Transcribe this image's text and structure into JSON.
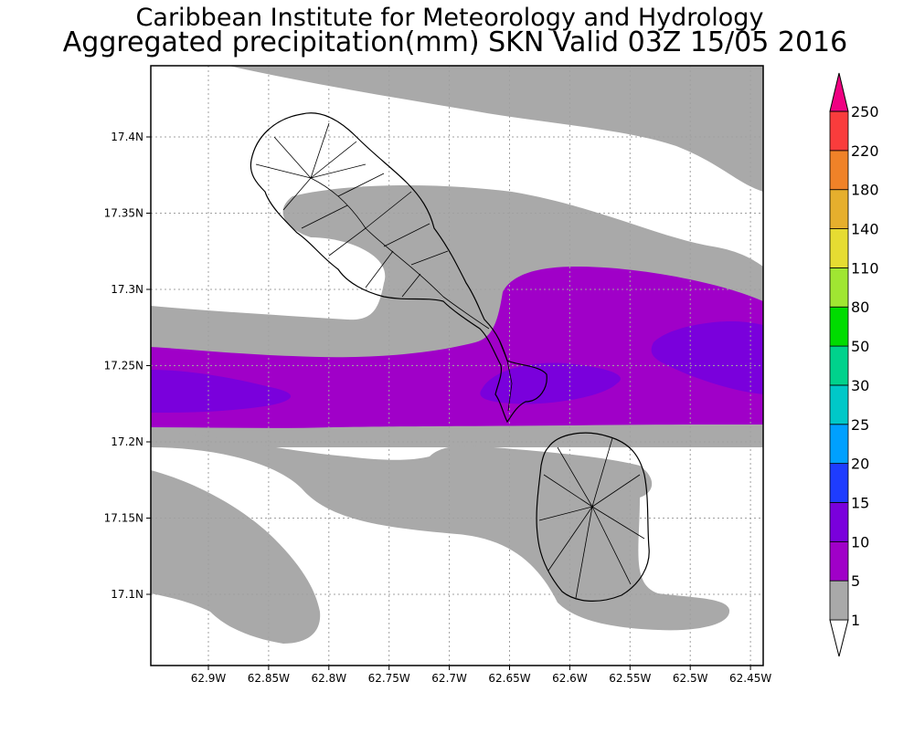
{
  "title": "Caribbean Institute for Meteorology and Hydrology",
  "subtitle": "Aggregated precipitation(mm) SKN Valid 03Z 15/05 2016",
  "axes": {
    "lon_ticks": [
      "62.9W",
      "62.85W",
      "62.8W",
      "62.75W",
      "62.7W",
      "62.65W",
      "62.6W",
      "62.55W",
      "62.5W",
      "62.45W"
    ],
    "lat_ticks": [
      "17.4N",
      "17.35N",
      "17.3N",
      "17.25N",
      "17.2N",
      "17.15N",
      "17.1N"
    ]
  },
  "colorbar": {
    "levels": [
      "1",
      "5",
      "10",
      "15",
      "20",
      "25",
      "30",
      "50",
      "80",
      "110",
      "140",
      "180",
      "220",
      "250"
    ],
    "colors": [
      "#a9a9a9",
      "#a000c8",
      "#7a00dc",
      "#1e3cff",
      "#00a0ff",
      "#00c8c8",
      "#00d28c",
      "#00dc00",
      "#a0e632",
      "#e6dc32",
      "#e6af2d",
      "#f08228",
      "#fa3c3c",
      "#f00082"
    ],
    "below_color": "#ffffff"
  },
  "colors": {
    "light_rain": "#a9a9a9",
    "moderate_rain": "#a000c8",
    "heavier_rain": "#7a00dc",
    "coastline": "#000000",
    "grid": "#a0a0a0"
  }
}
